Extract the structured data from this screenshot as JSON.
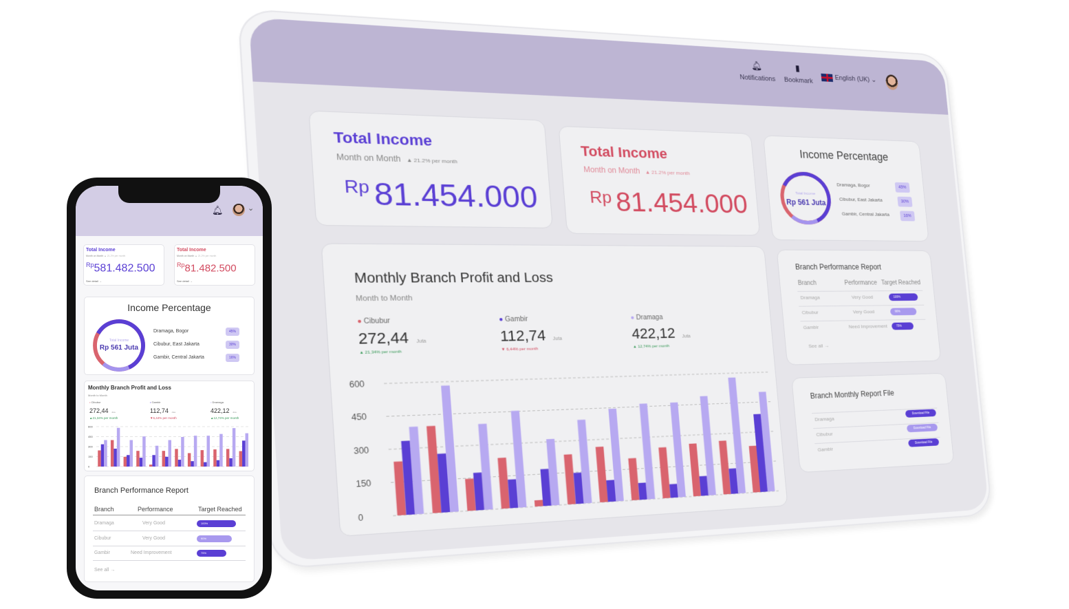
{
  "colors": {
    "primary": "#5a3fd4",
    "red": "#d24b60",
    "lavender": "#b7a9f1",
    "header": "#bdb5d3"
  },
  "tablet": {
    "header": {
      "notifications": "Notifications",
      "bookmark": "Bookmark",
      "language": "English (UK)",
      "icons": [
        "bell-icon",
        "bookmark-icon",
        "uk-flag-icon",
        "chevron-down-icon",
        "avatar"
      ]
    },
    "income_cards": [
      {
        "title": "Total Income",
        "subtitle": "Month on Month",
        "trend": "▲ 21.2% per month",
        "currency": "Rp",
        "value": "81.454.000"
      },
      {
        "title": "Total Income",
        "subtitle": "Month on Month",
        "trend": "▲ 21.2% per month",
        "currency": "Rp",
        "value": "81.454.000"
      }
    ],
    "income_percentage": {
      "title": "Income Percentage",
      "center_label": "Total Income",
      "center_value": "Rp 561 Juta",
      "items": [
        {
          "label": "Dramaga, Bogor",
          "pct": "45%"
        },
        {
          "label": "Cibubur, East Jakarta",
          "pct": "30%"
        },
        {
          "label": "Gambir, Central Jakarta",
          "pct": "16%"
        }
      ]
    },
    "chart_card": {
      "title": "Monthly Branch Profit and Loss",
      "subtitle": "Month to Month",
      "stats": [
        {
          "name": "Cibubur",
          "value": "272,44",
          "unit": "Juta",
          "trend": "▲ 21,34% per month"
        },
        {
          "name": "Gambir",
          "value": "112,74",
          "unit": "Juta",
          "trend": "▼ 6,44% per month"
        },
        {
          "name": "Dramaga",
          "value": "422,12",
          "unit": "Juta",
          "trend": "▲ 12,74% per month"
        }
      ]
    },
    "performance": {
      "title": "Branch Performance Report",
      "headers": [
        "Branch",
        "Performance",
        "Target Reached"
      ],
      "rows": [
        {
          "branch": "Dramaga",
          "performance": "Very Good",
          "target": "100%",
          "fill": 1.0
        },
        {
          "branch": "Cibubur",
          "performance": "Very Good",
          "target": "90%",
          "fill": 0.9
        },
        {
          "branch": "Gambir",
          "performance": "Need Improvement",
          "target": "75%",
          "fill": 0.75
        }
      ],
      "see_all": "See all →"
    },
    "report_file": {
      "title": "Branch Monthly Report File",
      "rows": [
        {
          "branch": "Dramaga",
          "button": "Download File"
        },
        {
          "branch": "Cibubur",
          "button": "Download File"
        },
        {
          "branch": "Gambir",
          "button": "Download File"
        }
      ]
    }
  },
  "phone": {
    "income_cards": [
      {
        "title": "Total Income",
        "subtitle": "Month on Month",
        "trend": "▲ 21.2% per month",
        "currency": "Rp",
        "value": "581.482.500",
        "link": "See detail →"
      },
      {
        "title": "Total Income",
        "subtitle": "Month on Month",
        "trend": "▲ 21.2% per month",
        "currency": "Rp",
        "value": "81.482.500",
        "link": "See detail →"
      }
    ],
    "chart_stats": [
      {
        "name": "Cibubur",
        "value": "272,44",
        "unit": "Juta",
        "trend": "▲21,34% per month"
      },
      {
        "name": "Gambir",
        "value": "112,74",
        "unit": "Juta",
        "trend": "▼6,44% per month"
      },
      {
        "name": "Dramaga",
        "value": "422,12",
        "unit": "Juta",
        "trend": "▲12,74% per month"
      }
    ]
  },
  "chart_data": {
    "type": "bar",
    "title": "Monthly Branch Profit and Loss",
    "subtitle": "Month to Month",
    "ylim": [
      0,
      600
    ],
    "yticks": [
      0,
      150,
      300,
      450,
      600
    ],
    "grid": true,
    "series": [
      {
        "name": "Cibubur",
        "color": "#d9646e",
        "values": [
          243,
          398,
          147,
          236,
          29,
          236,
          265,
          202,
          247,
          258,
          265,
          232
        ]
      },
      {
        "name": "Gambir",
        "color": "#5a3fd4",
        "values": [
          335,
          269,
          173,
          133,
          173,
          147,
          103,
          81,
          66,
          96,
          125,
          390
        ]
      },
      {
        "name": "Dramaga",
        "color": "#b7a9f1",
        "values": [
          398,
          582,
          398,
          453,
          313,
          398,
          445,
          464,
          464,
          490,
          578,
          501
        ]
      }
    ]
  }
}
